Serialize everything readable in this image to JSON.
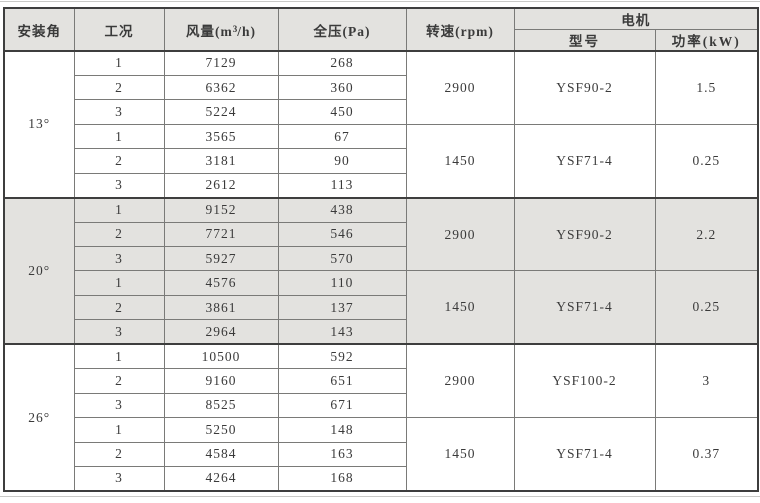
{
  "colors": {
    "page_bg": "#ffffff",
    "header_bg": "#e3e2df",
    "shaded_bg": "#e3e2df",
    "border_dark": "#3e3e3e",
    "border_light": "#7a7a78",
    "rule_light": "#c9c9c7",
    "text_color": "#3a3a3a"
  },
  "table": {
    "headers": {
      "angle": "安装角",
      "condition": "工况",
      "airflow_pre": "风量(m",
      "airflow_sup": "3",
      "airflow_post": "/h)",
      "pressure": "全压(Pa)",
      "speed": "转速(rpm)",
      "motor": "电机",
      "model": "型号",
      "power": "功率(kW)"
    },
    "groups": [
      {
        "angle": "13°",
        "shaded": false,
        "sub": [
          {
            "speed": "2900",
            "model": "YSF90-2",
            "power": "1.5",
            "rows": [
              [
                "1",
                "7129",
                "268"
              ],
              [
                "2",
                "6362",
                "360"
              ],
              [
                "3",
                "5224",
                "450"
              ]
            ]
          },
          {
            "speed": "1450",
            "model": "YSF71-4",
            "power": "0.25",
            "rows": [
              [
                "1",
                "3565",
                "67"
              ],
              [
                "2",
                "3181",
                "90"
              ],
              [
                "3",
                "2612",
                "113"
              ]
            ]
          }
        ]
      },
      {
        "angle": "20°",
        "shaded": true,
        "sub": [
          {
            "speed": "2900",
            "model": "YSF90-2",
            "power": "2.2",
            "rows": [
              [
                "1",
                "9152",
                "438"
              ],
              [
                "2",
                "7721",
                "546"
              ],
              [
                "3",
                "5927",
                "570"
              ]
            ]
          },
          {
            "speed": "1450",
            "model": "YSF71-4",
            "power": "0.25",
            "rows": [
              [
                "1",
                "4576",
                "110"
              ],
              [
                "2",
                "3861",
                "137"
              ],
              [
                "3",
                "2964",
                "143"
              ]
            ]
          }
        ]
      },
      {
        "angle": "26°",
        "shaded": false,
        "sub": [
          {
            "speed": "2900",
            "model": "YSF100-2",
            "power": "3",
            "rows": [
              [
                "1",
                "10500",
                "592"
              ],
              [
                "2",
                "9160",
                "651"
              ],
              [
                "3",
                "8525",
                "671"
              ]
            ]
          },
          {
            "speed": "1450",
            "model": "YSF71-4",
            "power": "0.37",
            "rows": [
              [
                "1",
                "5250",
                "148"
              ],
              [
                "2",
                "4584",
                "163"
              ],
              [
                "3",
                "4264",
                "168"
              ]
            ]
          }
        ]
      }
    ]
  }
}
